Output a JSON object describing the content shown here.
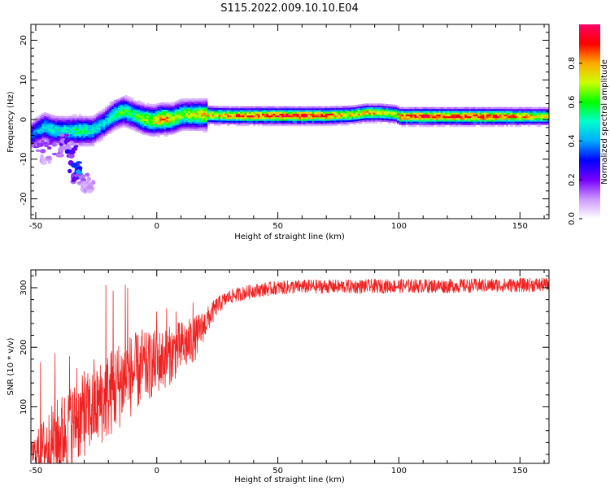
{
  "title": "S115.2022.009.10.10.E04",
  "chart_data": [
    {
      "type": "heatmap",
      "xlabel": "Height of straight line (km)",
      "ylabel": "Frequency (Hz)",
      "xlim": [
        -52,
        162
      ],
      "ylim": [
        -25,
        24
      ],
      "xticks": [
        -50,
        0,
        50,
        100,
        150
      ],
      "yticks": [
        -20,
        -10,
        0,
        10,
        20
      ],
      "colorbar": {
        "label": "Normalized spectral amplitude",
        "range": [
          0,
          1
        ],
        "ticks": [
          0.0,
          0.2,
          0.4,
          0.6,
          0.8
        ],
        "colormap": [
          "#ffffff",
          "#cc99ff",
          "#7700ff",
          "#0000ff",
          "#00aaff",
          "#00ffcc",
          "#00ff00",
          "#ccff00",
          "#ffaa00",
          "#ff0000",
          "#ff0066"
        ]
      },
      "ridge": {
        "x": [
          -52,
          -47,
          -42,
          -37,
          -32,
          -27,
          -22,
          -18,
          -14,
          -10,
          -6,
          -2,
          2,
          6,
          10,
          14,
          20,
          30,
          40,
          50,
          60,
          70,
          80,
          86,
          92,
          98,
          100,
          110,
          120,
          130,
          140,
          150,
          162
        ],
        "y": [
          -4,
          -2,
          -3,
          -3,
          -3,
          -3,
          -1,
          1,
          2,
          1,
          0,
          -0.5,
          0,
          0,
          1,
          1,
          1,
          0.8,
          0.8,
          0.8,
          0.8,
          0.8,
          1,
          1.5,
          1.5,
          1.2,
          0.6,
          0.6,
          0.6,
          0.6,
          0.6,
          0.6,
          0.6
        ],
        "amplitude": [
          0.35,
          0.45,
          0.5,
          0.5,
          0.55,
          0.5,
          0.45,
          0.55,
          0.6,
          0.55,
          0.65,
          0.7,
          0.85,
          0.7,
          0.65,
          0.7,
          0.75,
          0.8,
          0.85,
          0.9,
          0.9,
          0.85,
          0.75,
          0.8,
          0.75,
          0.7,
          0.85,
          0.9,
          0.85,
          0.9,
          0.85,
          0.8,
          0.7
        ]
      },
      "scatter_blobs": {
        "x": [
          -48,
          -46,
          -44,
          -40,
          -36,
          -34,
          -32,
          -33,
          -30,
          -29,
          -28,
          -35,
          -38
        ],
        "y": [
          -7,
          -10,
          -6,
          -8,
          -7,
          -12,
          -13,
          -15,
          -15,
          -17,
          -17,
          -8,
          -5
        ],
        "amplitude": [
          0.15,
          0.1,
          0.2,
          0.15,
          0.12,
          0.3,
          0.35,
          0.2,
          0.15,
          0.1,
          0.1,
          0.25,
          0.2
        ]
      }
    },
    {
      "type": "line",
      "xlabel": "Height of straight line (km)",
      "ylabel": "SNR (10 * v/v)",
      "xlim": [
        -52,
        162
      ],
      "ylim": [
        5,
        330
      ],
      "xticks": [
        -50,
        0,
        50,
        100,
        150
      ],
      "yticks": [
        100,
        200,
        300
      ],
      "color": "#ee2222",
      "envelope": {
        "x": [
          -52,
          -45,
          -40,
          -35,
          -30,
          -25,
          -20,
          -15,
          -10,
          -5,
          0,
          5,
          10,
          15,
          20,
          25,
          30,
          35,
          40,
          50,
          60,
          80,
          100,
          120,
          140,
          162
        ],
        "baseline": [
          20,
          35,
          50,
          70,
          85,
          100,
          120,
          140,
          155,
          165,
          175,
          185,
          200,
          210,
          240,
          270,
          285,
          290,
          295,
          300,
          302,
          302,
          303,
          303,
          304,
          305
        ],
        "noise": [
          20,
          60,
          70,
          70,
          70,
          70,
          75,
          75,
          70,
          60,
          55,
          50,
          45,
          40,
          25,
          15,
          12,
          12,
          12,
          12,
          12,
          12,
          12,
          12,
          12,
          12
        ]
      },
      "spikes": {
        "x": [
          -48,
          -42,
          -36,
          -33,
          -30,
          -26,
          -21,
          -18,
          -13,
          -12,
          -6,
          0,
          4,
          8,
          15
        ],
        "y": [
          175,
          190,
          185,
          165,
          160,
          180,
          305,
          295,
          305,
          300,
          230,
          260,
          265,
          260,
          275
        ]
      }
    }
  ]
}
